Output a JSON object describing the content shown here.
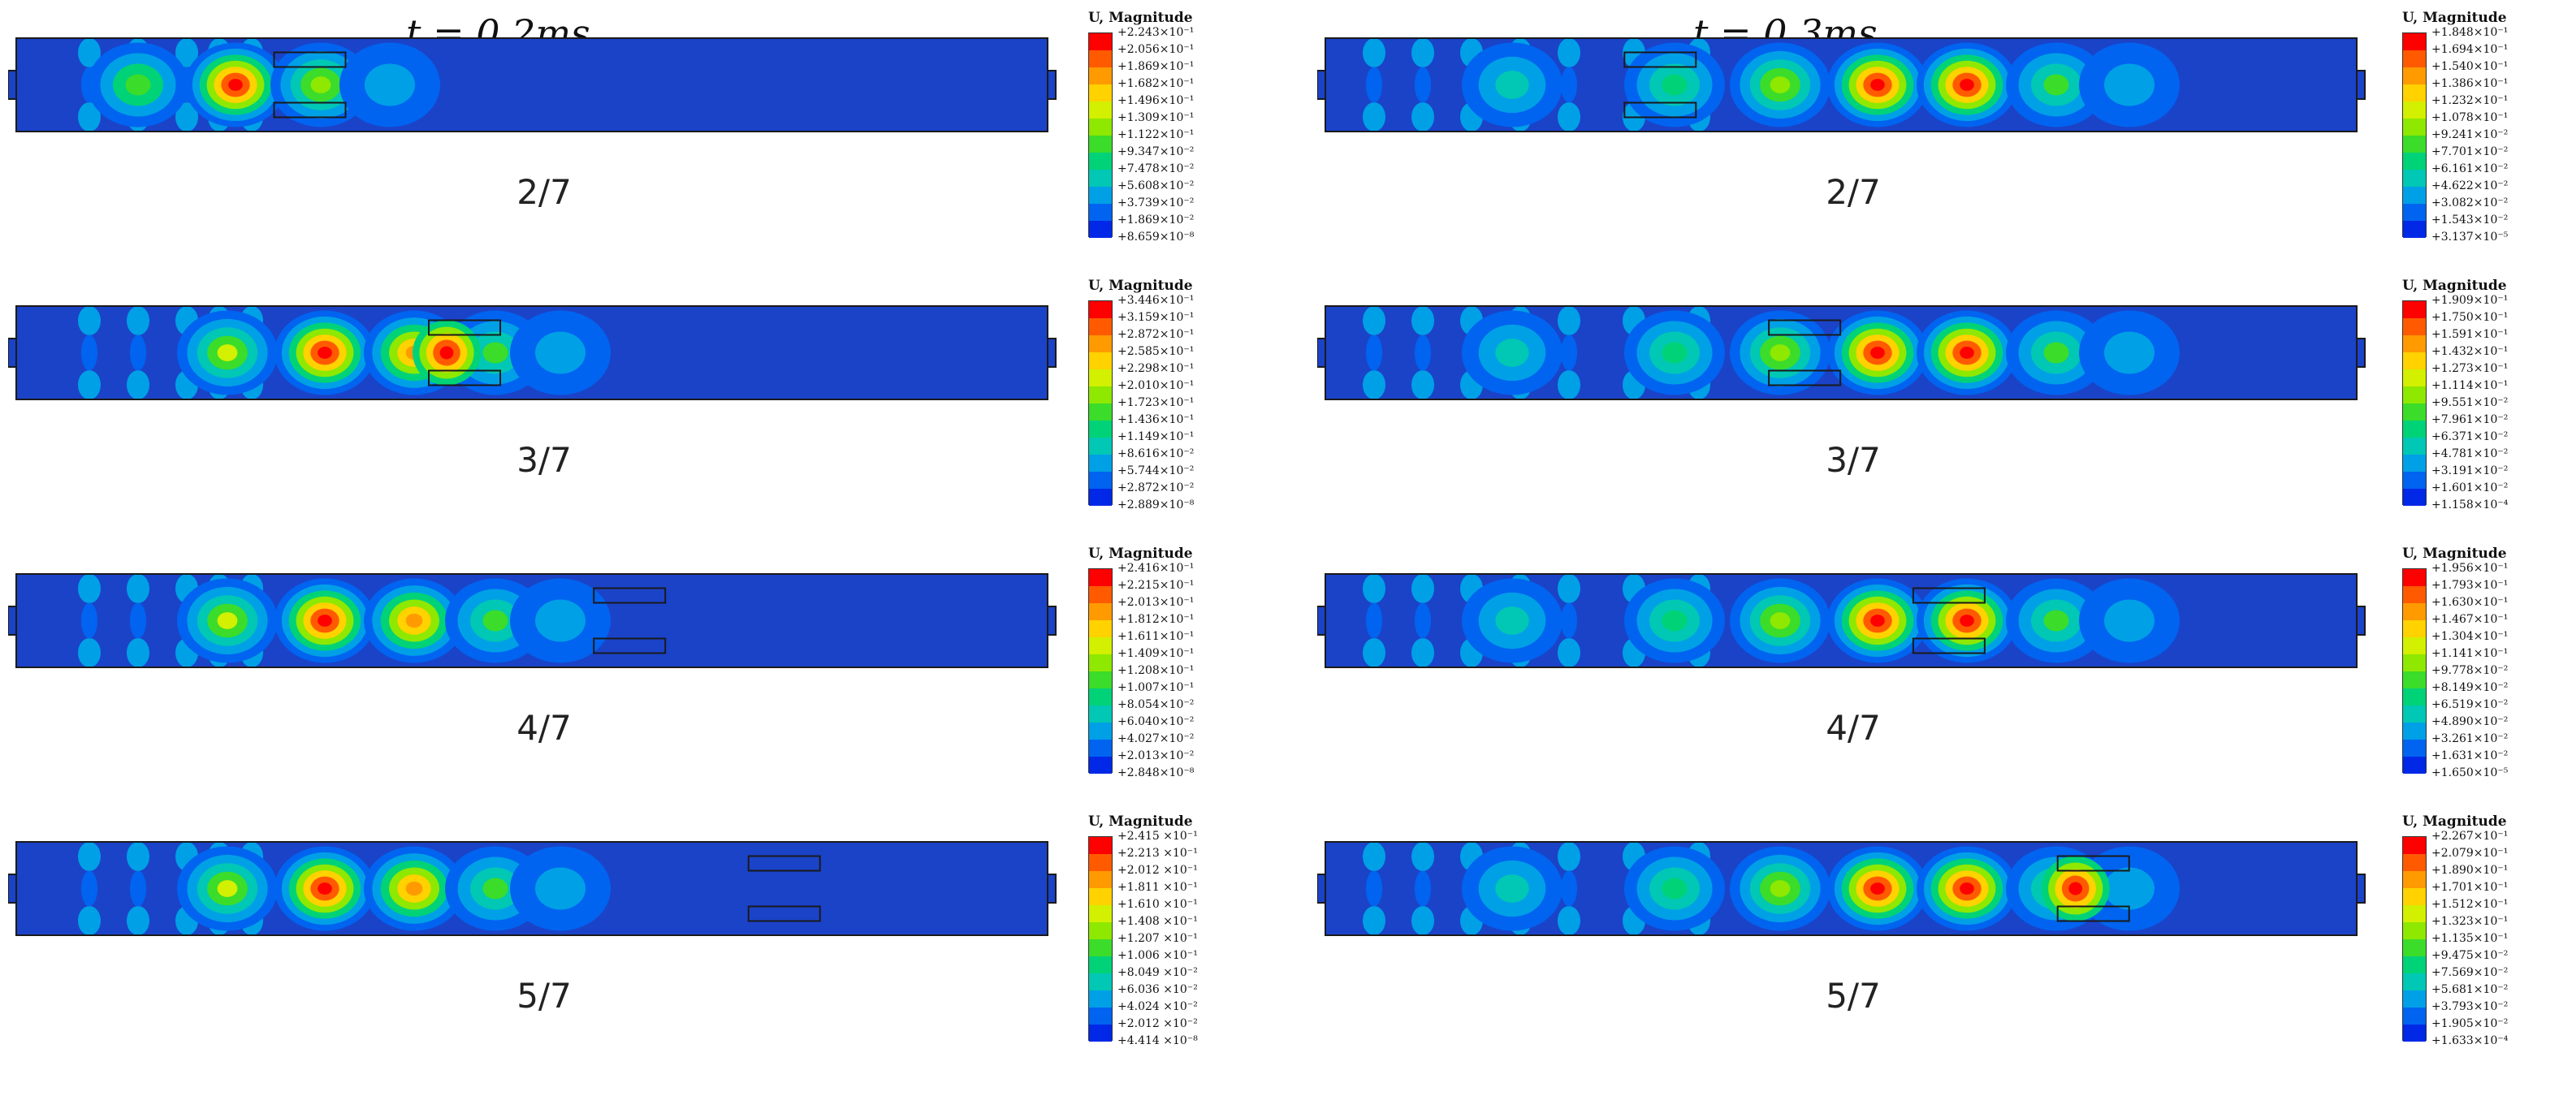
{
  "columns": [
    {
      "title": "t = 0.2ms",
      "panels": [
        {
          "ratio": "2/7",
          "legend": {
            "title": "U, Magnitude",
            "labels": [
              "+2.243×10⁻¹",
              "+2.056×10⁻¹",
              "+1.869×10⁻¹",
              "+1.682×10⁻¹",
              "+1.496×10⁻¹",
              "+1.309×10⁻¹",
              "+1.122×10⁻¹",
              "+9.347×10⁻²",
              "+7.478×10⁻²",
              "+5.608×10⁻²",
              "+3.739×10⁻²",
              "+1.869×10⁻²",
              "+8.659×10⁻⁸"
            ]
          },
          "blocks_position": 0.25
        },
        {
          "ratio": "3/7",
          "legend": {
            "title": "U, Magnitude",
            "labels": [
              "+3.446×10⁻¹",
              "+3.159×10⁻¹",
              "+2.872×10⁻¹",
              "+2.585×10⁻¹",
              "+2.298×10⁻¹",
              "+2.010×10⁻¹",
              "+1.723×10⁻¹",
              "+1.436×10⁻¹",
              "+1.149×10⁻¹",
              "+8.616×10⁻²",
              "+5.744×10⁻²",
              "+2.872×10⁻²",
              "+2.889×10⁻⁸"
            ]
          },
          "blocks_position": 0.4
        },
        {
          "ratio": "4/7",
          "legend": {
            "title": "U, Magnitude",
            "labels": [
              "+2.416×10⁻¹",
              "+2.215×10⁻¹",
              "+2.013×10⁻¹",
              "+1.812×10⁻¹",
              "+1.611×10⁻¹",
              "+1.409×10⁻¹",
              "+1.208×10⁻¹",
              "+1.007×10⁻¹",
              "+8.054×10⁻²",
              "+6.040×10⁻²",
              "+4.027×10⁻²",
              "+2.013×10⁻²",
              "+2.848×10⁻⁸"
            ]
          },
          "blocks_position": 0.56
        },
        {
          "ratio": "5/7",
          "legend": {
            "title": "U, Magnitude",
            "labels": [
              "+2.415 ×10⁻¹",
              "+2.213 ×10⁻¹",
              "+2.012 ×10⁻¹",
              "+1.811 ×10⁻¹",
              "+1.610 ×10⁻¹",
              "+1.408 ×10⁻¹",
              "+1.207 ×10⁻¹",
              "+1.006 ×10⁻¹",
              "+8.049 ×10⁻²",
              "+6.036 ×10⁻²",
              "+4.024 ×10⁻²",
              "+2.012 ×10⁻²",
              "+4.414 ×10⁻⁸"
            ]
          },
          "blocks_position": 0.71
        }
      ]
    },
    {
      "title": "t = 0.3ms",
      "panels": [
        {
          "ratio": "2/7",
          "legend": {
            "title": "U, Magnitude",
            "labels": [
              "+1.848×10⁻¹",
              "+1.694×10⁻¹",
              "+1.540×10⁻¹",
              "+1.386×10⁻¹",
              "+1.232×10⁻¹",
              "+1.078×10⁻¹",
              "+9.241×10⁻²",
              "+7.701×10⁻²",
              "+6.161×10⁻²",
              "+4.622×10⁻²",
              "+3.082×10⁻²",
              "+1.543×10⁻²",
              "+3.137×10⁻⁵"
            ]
          },
          "blocks_position": 0.29
        },
        {
          "ratio": "3/7",
          "legend": {
            "title": "U, Magnitude",
            "labels": [
              "+1.909×10⁻¹",
              "+1.750×10⁻¹",
              "+1.591×10⁻¹",
              "+1.432×10⁻¹",
              "+1.273×10⁻¹",
              "+1.114×10⁻¹",
              "+9.551×10⁻²",
              "+7.961×10⁻²",
              "+6.371×10⁻²",
              "+4.781×10⁻²",
              "+3.191×10⁻²",
              "+1.601×10⁻²",
              "+1.158×10⁻⁴"
            ]
          },
          "blocks_position": 0.43
        },
        {
          "ratio": "4/7",
          "legend": {
            "title": "U, Magnitude",
            "labels": [
              "+1.956×10⁻¹",
              "+1.793×10⁻¹",
              "+1.630×10⁻¹",
              "+1.467×10⁻¹",
              "+1.304×10⁻¹",
              "+1.141×10⁻¹",
              "+9.778×10⁻²",
              "+8.149×10⁻²",
              "+6.519×10⁻²",
              "+4.890×10⁻²",
              "+3.261×10⁻²",
              "+1.631×10⁻²",
              "+1.650×10⁻⁵"
            ]
          },
          "blocks_position": 0.57
        },
        {
          "ratio": "5/7",
          "legend": {
            "title": "U, Magnitude",
            "labels": [
              "+2.267×10⁻¹",
              "+2.079×10⁻¹",
              "+1.890×10⁻¹",
              "+1.701×10⁻¹",
              "+1.512×10⁻¹",
              "+1.323×10⁻¹",
              "+1.135×10⁻¹",
              "+9.475×10⁻²",
              "+7.569×10⁻²",
              "+5.681×10⁻²",
              "+3.793×10⁻²",
              "+1.905×10⁻²",
              "+1.633×10⁻⁴"
            ]
          },
          "blocks_position": 0.71
        }
      ]
    }
  ],
  "colors": {
    "scale": [
      "#ff0000",
      "#ff5a00",
      "#ff9a00",
      "#ffd200",
      "#d2f000",
      "#8ee800",
      "#3cdc2a",
      "#00d278",
      "#00c8b4",
      "#00a0e6",
      "#0064f0",
      "#0028e6",
      "#0000d2"
    ],
    "background_field": "#1b43c8",
    "outline": "#1a1a1a"
  }
}
